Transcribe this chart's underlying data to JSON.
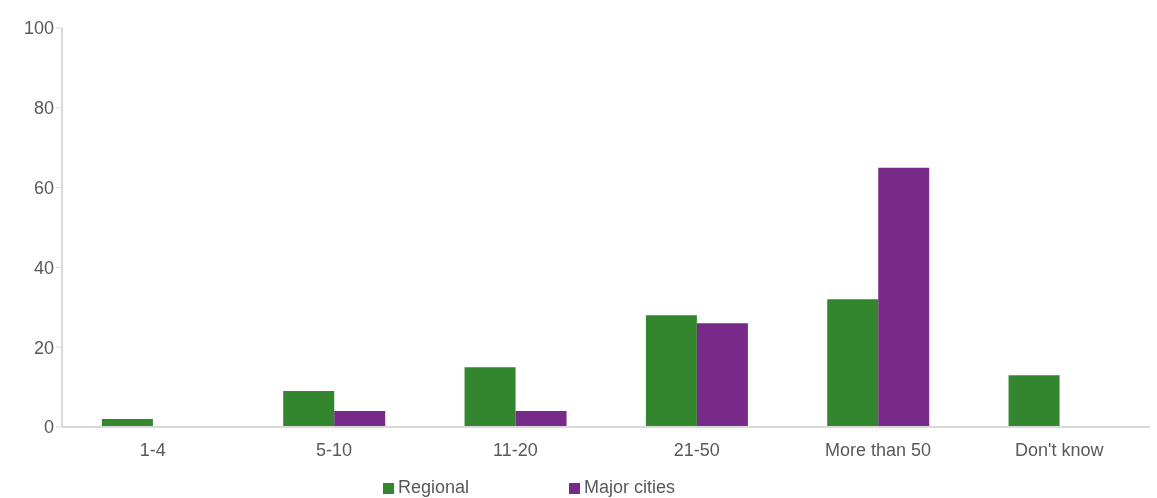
{
  "chart_data": {
    "type": "bar",
    "categories": [
      "1-4",
      "5-10",
      "11-20",
      "21-50",
      "More than 50",
      "Don't know"
    ],
    "series": [
      {
        "name": "Regional",
        "color": "#33862e",
        "values": [
          2,
          9,
          15,
          28,
          32,
          13
        ]
      },
      {
        "name": "Major cities",
        "color": "#782a89",
        "values": [
          0,
          4,
          4,
          26,
          65,
          0
        ]
      }
    ],
    "ylim": [
      0,
      100
    ],
    "yticks": [
      0,
      20,
      40,
      60,
      80,
      100
    ],
    "legend": "bottom"
  }
}
